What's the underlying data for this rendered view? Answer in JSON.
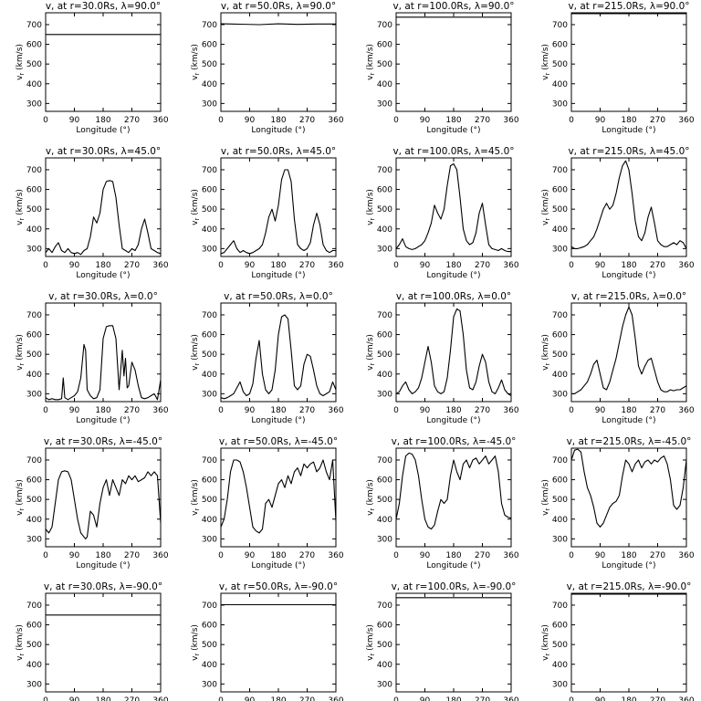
{
  "chart_data": {
    "type": "line",
    "layout": {
      "rows": 5,
      "cols": 4
    },
    "xlabel": "Longitude (°)",
    "ylabel": "vr (km/s)",
    "ylabel_text": "v",
    "ylabel_sub": "r",
    "ylabel_rest": " (km/s)",
    "xticks": [
      0,
      90,
      180,
      270,
      360
    ],
    "yticks": [
      300,
      400,
      500,
      600,
      700
    ],
    "xlim": [
      0,
      360
    ],
    "ylim": [
      260,
      760
    ],
    "line_color": "#000000",
    "panels": [
      {
        "title": "v, at r=30.0Rs, λ=90.0°",
        "x": [
          0,
          360
        ],
        "y": [
          650,
          650
        ]
      },
      {
        "title": "v, at r=50.0Rs, λ=90.0°",
        "x": [
          0,
          60,
          120,
          180,
          240,
          300,
          360
        ],
        "y": [
          704,
          702,
          700,
          704,
          701,
          703,
          703
        ]
      },
      {
        "title": "v, at r=100.0Rs, λ=90.0°",
        "x": [
          0,
          360
        ],
        "y": [
          738,
          738
        ]
      },
      {
        "title": "v, at r=215.0Rs, λ=90.0°",
        "x": [
          0,
          360
        ],
        "y": [
          756,
          756
        ]
      },
      {
        "title": "v, at r=30.0Rs, λ=45.0°",
        "x": [
          0,
          10,
          20,
          30,
          40,
          50,
          60,
          70,
          80,
          90,
          100,
          110,
          120,
          130,
          140,
          150,
          160,
          170,
          180,
          190,
          200,
          210,
          220,
          230,
          240,
          250,
          260,
          270,
          280,
          290,
          300,
          310,
          320,
          330,
          340,
          350,
          360
        ],
        "y": [
          280,
          300,
          280,
          310,
          330,
          290,
          280,
          300,
          280,
          275,
          280,
          270,
          290,
          300,
          360,
          460,
          430,
          480,
          600,
          640,
          645,
          640,
          560,
          420,
          300,
          290,
          280,
          300,
          290,
          320,
          400,
          450,
          380,
          300,
          290,
          280,
          275
        ]
      },
      {
        "title": "v, at r=50.0Rs, λ=45.0°",
        "x": [
          0,
          10,
          20,
          30,
          40,
          50,
          60,
          70,
          80,
          90,
          100,
          110,
          120,
          130,
          140,
          150,
          160,
          170,
          180,
          190,
          200,
          210,
          220,
          230,
          240,
          250,
          260,
          270,
          280,
          290,
          300,
          310,
          320,
          330,
          340,
          350,
          360
        ],
        "y": [
          275,
          280,
          300,
          320,
          340,
          300,
          280,
          290,
          280,
          275,
          280,
          290,
          300,
          320,
          380,
          460,
          500,
          440,
          520,
          650,
          700,
          700,
          640,
          450,
          320,
          300,
          290,
          300,
          330,
          420,
          480,
          420,
          320,
          290,
          280,
          290,
          290
        ]
      },
      {
        "title": "v, at r=100.0Rs, λ=45.0°",
        "x": [
          0,
          10,
          20,
          30,
          40,
          50,
          60,
          70,
          80,
          90,
          100,
          110,
          120,
          130,
          140,
          150,
          160,
          170,
          180,
          190,
          200,
          210,
          220,
          230,
          240,
          250,
          260,
          270,
          280,
          290,
          300,
          310,
          320,
          330,
          340,
          350,
          360
        ],
        "y": [
          300,
          320,
          350,
          310,
          300,
          295,
          300,
          310,
          320,
          340,
          380,
          430,
          520,
          480,
          450,
          500,
          620,
          720,
          730,
          700,
          560,
          400,
          340,
          320,
          330,
          380,
          480,
          530,
          420,
          320,
          300,
          295,
          290,
          300,
          290,
          285,
          285
        ]
      },
      {
        "title": "v, at r=215.0Rs, λ=45.0°",
        "x": [
          0,
          10,
          20,
          30,
          40,
          50,
          60,
          70,
          80,
          90,
          100,
          110,
          120,
          130,
          140,
          150,
          160,
          170,
          180,
          190,
          200,
          210,
          220,
          230,
          240,
          250,
          260,
          270,
          280,
          290,
          300,
          310,
          320,
          330,
          340,
          350,
          360
        ],
        "y": [
          310,
          300,
          300,
          305,
          310,
          320,
          340,
          360,
          400,
          450,
          500,
          530,
          500,
          520,
          580,
          660,
          720,
          745,
          700,
          580,
          440,
          360,
          340,
          380,
          460,
          510,
          430,
          340,
          320,
          310,
          310,
          320,
          330,
          320,
          340,
          330,
          300
        ]
      },
      {
        "title": "v, at r=30.0Rs, λ=0.0°",
        "x": [
          0,
          10,
          20,
          30,
          40,
          50,
          55,
          60,
          70,
          80,
          90,
          100,
          110,
          120,
          125,
          130,
          140,
          150,
          160,
          170,
          180,
          190,
          200,
          210,
          220,
          230,
          240,
          245,
          250,
          255,
          260,
          270,
          280,
          290,
          300,
          310,
          320,
          330,
          340,
          350,
          360
        ],
        "y": [
          280,
          270,
          275,
          270,
          270,
          275,
          380,
          280,
          270,
          280,
          290,
          310,
          380,
          550,
          520,
          320,
          290,
          275,
          280,
          320,
          580,
          640,
          645,
          645,
          580,
          320,
          520,
          390,
          480,
          330,
          340,
          460,
          420,
          340,
          280,
          275,
          280,
          290,
          300,
          270,
          370
        ]
      },
      {
        "title": "v, at r=50.0Rs, λ=0.0°",
        "x": [
          0,
          10,
          20,
          30,
          40,
          50,
          60,
          70,
          80,
          90,
          100,
          110,
          120,
          130,
          140,
          150,
          160,
          170,
          180,
          190,
          200,
          210,
          220,
          230,
          240,
          250,
          260,
          270,
          280,
          290,
          300,
          310,
          320,
          330,
          340,
          350,
          360
        ],
        "y": [
          280,
          275,
          280,
          290,
          300,
          330,
          360,
          310,
          290,
          300,
          350,
          480,
          570,
          400,
          320,
          300,
          320,
          420,
          600,
          690,
          700,
          680,
          520,
          340,
          320,
          340,
          450,
          500,
          490,
          420,
          340,
          300,
          290,
          300,
          310,
          360,
          320
        ]
      },
      {
        "title": "v, at r=100.0Rs, λ=0.0°",
        "x": [
          0,
          10,
          20,
          30,
          40,
          50,
          60,
          70,
          80,
          90,
          100,
          110,
          120,
          130,
          140,
          150,
          160,
          170,
          180,
          190,
          200,
          210,
          220,
          230,
          240,
          250,
          260,
          270,
          280,
          290,
          300,
          310,
          320,
          330,
          340,
          350,
          360
        ],
        "y": [
          300,
          310,
          340,
          360,
          320,
          300,
          310,
          330,
          380,
          460,
          540,
          460,
          340,
          310,
          300,
          310,
          380,
          520,
          690,
          730,
          720,
          600,
          420,
          330,
          320,
          360,
          440,
          500,
          460,
          360,
          310,
          300,
          330,
          370,
          320,
          300,
          290
        ]
      },
      {
        "title": "v, at r=215.0Rs, λ=0.0°",
        "x": [
          0,
          10,
          20,
          30,
          40,
          50,
          60,
          70,
          80,
          90,
          100,
          110,
          120,
          130,
          140,
          150,
          160,
          170,
          180,
          190,
          200,
          210,
          220,
          230,
          240,
          250,
          260,
          270,
          280,
          290,
          300,
          310,
          320,
          330,
          340,
          350,
          360
        ],
        "y": [
          300,
          300,
          310,
          320,
          340,
          360,
          400,
          450,
          470,
          400,
          330,
          320,
          360,
          420,
          480,
          560,
          640,
          700,
          740,
          700,
          580,
          440,
          400,
          440,
          470,
          480,
          420,
          360,
          320,
          310,
          310,
          320,
          315,
          320,
          320,
          330,
          340
        ]
      },
      {
        "title": "v, at r=30.0Rs, λ=-45.0°",
        "x": [
          0,
          10,
          20,
          30,
          40,
          50,
          60,
          70,
          80,
          90,
          100,
          110,
          120,
          125,
          130,
          140,
          150,
          160,
          170,
          180,
          190,
          200,
          210,
          220,
          230,
          240,
          250,
          260,
          270,
          280,
          290,
          300,
          310,
          320,
          330,
          340,
          350,
          360
        ],
        "y": [
          350,
          330,
          360,
          480,
          600,
          640,
          645,
          640,
          600,
          500,
          400,
          330,
          310,
          300,
          310,
          440,
          420,
          360,
          480,
          560,
          600,
          520,
          600,
          560,
          520,
          600,
          580,
          620,
          600,
          620,
          590,
          600,
          610,
          640,
          620,
          640,
          620,
          380
        ]
      },
      {
        "title": "v, at r=50.0Rs, λ=-45.0°",
        "x": [
          0,
          10,
          20,
          30,
          40,
          50,
          60,
          70,
          80,
          90,
          100,
          110,
          120,
          130,
          140,
          150,
          160,
          170,
          180,
          190,
          200,
          210,
          220,
          230,
          240,
          250,
          260,
          270,
          280,
          290,
          300,
          310,
          320,
          330,
          340,
          350,
          360
        ],
        "y": [
          360,
          400,
          500,
          640,
          700,
          700,
          690,
          640,
          560,
          460,
          360,
          340,
          330,
          350,
          480,
          500,
          460,
          520,
          580,
          600,
          560,
          620,
          580,
          640,
          660,
          620,
          680,
          660,
          680,
          690,
          640,
          660,
          700,
          640,
          600,
          700,
          390
        ]
      },
      {
        "title": "v, at r=100.0Rs, λ=-45.0°",
        "x": [
          0,
          10,
          20,
          30,
          40,
          50,
          60,
          70,
          80,
          90,
          100,
          110,
          120,
          130,
          140,
          150,
          160,
          170,
          180,
          190,
          200,
          210,
          220,
          230,
          240,
          250,
          260,
          270,
          280,
          290,
          300,
          310,
          320,
          330,
          340,
          350,
          360
        ],
        "y": [
          400,
          480,
          620,
          720,
          735,
          730,
          700,
          620,
          500,
          400,
          360,
          350,
          370,
          440,
          500,
          480,
          500,
          620,
          700,
          640,
          600,
          680,
          700,
          660,
          700,
          710,
          680,
          700,
          720,
          680,
          700,
          720,
          640,
          480,
          420,
          410,
          405
        ]
      },
      {
        "title": "v, at r=215.0Rs, λ=-45.0°",
        "x": [
          0,
          10,
          20,
          30,
          40,
          50,
          60,
          70,
          80,
          90,
          100,
          110,
          120,
          130,
          140,
          150,
          160,
          170,
          180,
          190,
          200,
          210,
          220,
          230,
          240,
          250,
          260,
          270,
          280,
          290,
          300,
          310,
          320,
          330,
          340,
          350,
          360
        ],
        "y": [
          700,
          750,
          755,
          740,
          640,
          560,
          520,
          460,
          380,
          360,
          380,
          420,
          460,
          480,
          490,
          520,
          620,
          700,
          680,
          640,
          680,
          700,
          660,
          690,
          700,
          680,
          700,
          690,
          710,
          720,
          680,
          600,
          470,
          450,
          470,
          560,
          700
        ]
      },
      {
        "title": "v, at r=30.0Rs, λ=-90.0°",
        "x": [
          0,
          360
        ],
        "y": [
          650,
          650
        ]
      },
      {
        "title": "v, at r=50.0Rs, λ=-90.0°",
        "x": [
          0,
          360
        ],
        "y": [
          702,
          702
        ]
      },
      {
        "title": "v, at r=100.0Rs, λ=-90.0°",
        "x": [
          0,
          360
        ],
        "y": [
          738,
          738
        ]
      },
      {
        "title": "v, at r=215.0Rs, λ=-90.0°",
        "x": [
          0,
          360
        ],
        "y": [
          756,
          756
        ]
      }
    ]
  }
}
